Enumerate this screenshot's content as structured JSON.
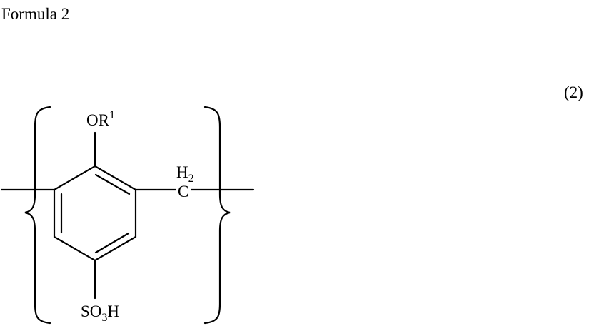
{
  "heading": "Formula 2",
  "equation_number": "(2)",
  "structure": {
    "substituent_top": {
      "main": "OR",
      "superscript": "1"
    },
    "methylene": {
      "h_main": "H",
      "h_subscript": "2",
      "c_label": "C"
    },
    "substituent_bottom": {
      "part1": "SO",
      "subscript": "3",
      "part2": "H"
    }
  }
}
